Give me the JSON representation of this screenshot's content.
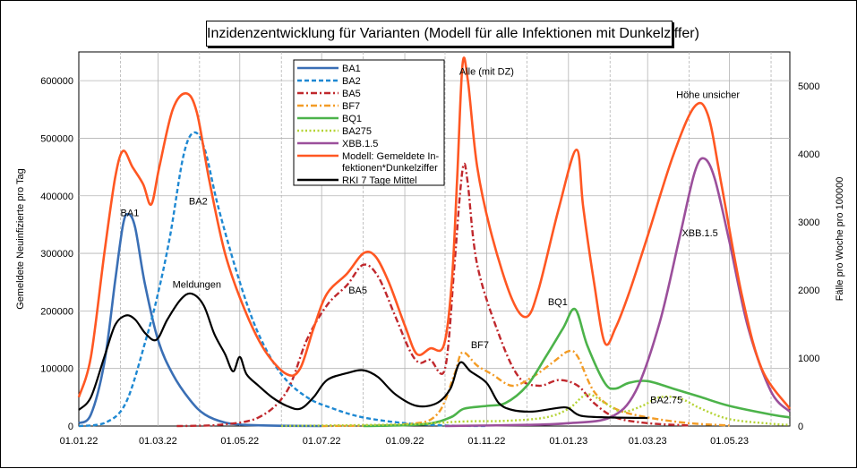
{
  "chart_data": {
    "type": "line",
    "title": "Inzidenzentwicklung für Varianten (Modell für alle Infektionen mit Dunkelziffer)",
    "ylabel": "Gemeldete Neuinfizierte pro Tag",
    "y2label": "Fälle pro Woche pro 100000",
    "x_tick_labels": [
      "01.01.22",
      "01.03.22",
      "01.05.22",
      "01.07.22",
      "01.09.22",
      "01.11.22",
      "01.01.23",
      "01.03.23",
      "01.05.23"
    ],
    "xlim": [
      "2022-01-01",
      "2023-06-15"
    ],
    "ylim": [
      0,
      650000
    ],
    "y_ticks": [
      0,
      100000,
      200000,
      300000,
      400000,
      500000,
      600000
    ],
    "y2lim": [
      0,
      5500
    ],
    "y2_ticks": [
      0,
      1000,
      2000,
      3000,
      4000,
      5000
    ],
    "grid": true,
    "legend_position": "top-center",
    "series": [
      {
        "name": "BA1",
        "color": "#3a6fb5",
        "dash": "solid",
        "points": [
          [
            "2022-01-01",
            5000
          ],
          [
            "2022-01-10",
            20000
          ],
          [
            "2022-01-20",
            110000
          ],
          [
            "2022-01-28",
            250000
          ],
          [
            "2022-02-03",
            350000
          ],
          [
            "2022-02-07",
            368000
          ],
          [
            "2022-02-12",
            345000
          ],
          [
            "2022-02-19",
            250000
          ],
          [
            "2022-03-01",
            150000
          ],
          [
            "2022-03-12",
            90000
          ],
          [
            "2022-03-25",
            45000
          ],
          [
            "2022-04-05",
            20000
          ],
          [
            "2022-04-20",
            6000
          ],
          [
            "2022-05-05",
            2000
          ],
          [
            "2022-06-01",
            500
          ],
          [
            "2022-07-01",
            0
          ]
        ]
      },
      {
        "name": "BA2",
        "color": "#1e88d2",
        "dash": "dashed",
        "points": [
          [
            "2022-01-01",
            0
          ],
          [
            "2022-01-20",
            5000
          ],
          [
            "2022-02-05",
            40000
          ],
          [
            "2022-02-20",
            150000
          ],
          [
            "2022-03-01",
            230000
          ],
          [
            "2022-03-10",
            330000
          ],
          [
            "2022-03-20",
            470000
          ],
          [
            "2022-03-28",
            510000
          ],
          [
            "2022-04-05",
            480000
          ],
          [
            "2022-04-15",
            380000
          ],
          [
            "2022-05-01",
            250000
          ],
          [
            "2022-05-15",
            160000
          ],
          [
            "2022-06-01",
            90000
          ],
          [
            "2022-06-20",
            50000
          ],
          [
            "2022-07-10",
            30000
          ],
          [
            "2022-08-01",
            15000
          ],
          [
            "2022-09-01",
            5000
          ],
          [
            "2022-10-01",
            1000
          ],
          [
            "2022-11-01",
            0
          ]
        ]
      },
      {
        "name": "BA5",
        "color": "#c0282d",
        "dash": "dashdot",
        "points": [
          [
            "2022-03-15",
            0
          ],
          [
            "2022-04-15",
            2000
          ],
          [
            "2022-05-15",
            15000
          ],
          [
            "2022-06-05",
            60000
          ],
          [
            "2022-06-20",
            150000
          ],
          [
            "2022-07-05",
            210000
          ],
          [
            "2022-07-20",
            245000
          ],
          [
            "2022-08-01",
            280000
          ],
          [
            "2022-08-12",
            260000
          ],
          [
            "2022-08-25",
            190000
          ],
          [
            "2022-09-05",
            130000
          ],
          [
            "2022-09-12",
            110000
          ],
          [
            "2022-09-20",
            115000
          ],
          [
            "2022-10-01",
            100000
          ],
          [
            "2022-10-08",
            280000
          ],
          [
            "2022-10-12",
            400000
          ],
          [
            "2022-10-15",
            455000
          ],
          [
            "2022-10-18",
            420000
          ],
          [
            "2022-10-25",
            280000
          ],
          [
            "2022-11-10",
            160000
          ],
          [
            "2022-11-25",
            85000
          ],
          [
            "2022-12-10",
            70000
          ],
          [
            "2022-12-25",
            80000
          ],
          [
            "2023-01-08",
            70000
          ],
          [
            "2023-01-20",
            40000
          ],
          [
            "2023-02-05",
            15000
          ],
          [
            "2023-03-01",
            5000
          ],
          [
            "2023-04-01",
            1000
          ]
        ]
      },
      {
        "name": "BF7",
        "color": "#f39c26",
        "dash": "dashdot",
        "points": [
          [
            "2022-07-01",
            0
          ],
          [
            "2022-09-01",
            3000
          ],
          [
            "2022-09-25",
            20000
          ],
          [
            "2022-10-08",
            90000
          ],
          [
            "2022-10-14",
            128000
          ],
          [
            "2022-10-25",
            105000
          ],
          [
            "2022-11-05",
            90000
          ],
          [
            "2022-11-20",
            70000
          ],
          [
            "2022-12-05",
            85000
          ],
          [
            "2022-12-20",
            110000
          ],
          [
            "2023-01-01",
            130000
          ],
          [
            "2023-01-08",
            120000
          ],
          [
            "2023-01-20",
            60000
          ],
          [
            "2023-02-05",
            30000
          ],
          [
            "2023-03-01",
            15000
          ],
          [
            "2023-04-01",
            5000
          ],
          [
            "2023-05-01",
            1000
          ]
        ]
      },
      {
        "name": "BQ1",
        "color": "#4cb34a",
        "dash": "solid",
        "points": [
          [
            "2022-08-01",
            0
          ],
          [
            "2022-09-15",
            3000
          ],
          [
            "2022-10-05",
            15000
          ],
          [
            "2022-10-15",
            30000
          ],
          [
            "2022-11-01",
            35000
          ],
          [
            "2022-11-15",
            40000
          ],
          [
            "2022-12-01",
            70000
          ],
          [
            "2022-12-15",
            120000
          ],
          [
            "2022-12-28",
            170000
          ],
          [
            "2023-01-06",
            203000
          ],
          [
            "2023-01-15",
            140000
          ],
          [
            "2023-01-28",
            75000
          ],
          [
            "2023-02-05",
            65000
          ],
          [
            "2023-02-15",
            75000
          ],
          [
            "2023-03-01",
            78000
          ],
          [
            "2023-03-20",
            65000
          ],
          [
            "2023-04-10",
            50000
          ],
          [
            "2023-05-01",
            35000
          ],
          [
            "2023-06-01",
            20000
          ],
          [
            "2023-06-15",
            15000
          ]
        ]
      },
      {
        "name": "BA275",
        "color": "#b5d334",
        "dash": "dotted",
        "points": [
          [
            "2022-06-01",
            0
          ],
          [
            "2022-09-01",
            3000
          ],
          [
            "2022-10-15",
            8000
          ],
          [
            "2022-11-15",
            9000
          ],
          [
            "2022-12-15",
            15000
          ],
          [
            "2023-01-01",
            30000
          ],
          [
            "2023-01-15",
            55000
          ],
          [
            "2023-01-28",
            40000
          ],
          [
            "2023-02-10",
            25000
          ],
          [
            "2023-02-25",
            35000
          ],
          [
            "2023-03-10",
            50000
          ],
          [
            "2023-03-25",
            48000
          ],
          [
            "2023-04-10",
            30000
          ],
          [
            "2023-05-01",
            12000
          ],
          [
            "2023-06-01",
            4000
          ],
          [
            "2023-06-15",
            2000
          ]
        ]
      },
      {
        "name": "XBB.1.5",
        "color": "#9b4f9b",
        "dash": "solid",
        "points": [
          [
            "2022-10-01",
            0
          ],
          [
            "2022-12-01",
            2000
          ],
          [
            "2023-01-01",
            5000
          ],
          [
            "2023-02-01",
            15000
          ],
          [
            "2023-02-20",
            60000
          ],
          [
            "2023-03-10",
            180000
          ],
          [
            "2023-03-25",
            330000
          ],
          [
            "2023-04-05",
            440000
          ],
          [
            "2023-04-12",
            465000
          ],
          [
            "2023-04-20",
            430000
          ],
          [
            "2023-05-01",
            320000
          ],
          [
            "2023-05-15",
            170000
          ],
          [
            "2023-06-01",
            60000
          ],
          [
            "2023-06-15",
            25000
          ]
        ]
      },
      {
        "name": "Modell: Gemeldete Infektionen*Dunkelziffer",
        "color": "#ff5722",
        "dash": "solid",
        "points": [
          [
            "2022-01-01",
            50000
          ],
          [
            "2022-01-10",
            120000
          ],
          [
            "2022-01-20",
            300000
          ],
          [
            "2022-01-28",
            430000
          ],
          [
            "2022-02-03",
            478000
          ],
          [
            "2022-02-10",
            450000
          ],
          [
            "2022-02-18",
            420000
          ],
          [
            "2022-02-24",
            385000
          ],
          [
            "2022-03-02",
            450000
          ],
          [
            "2022-03-12",
            550000
          ],
          [
            "2022-03-22",
            578000
          ],
          [
            "2022-03-30",
            545000
          ],
          [
            "2022-04-08",
            430000
          ],
          [
            "2022-04-20",
            300000
          ],
          [
            "2022-05-05",
            200000
          ],
          [
            "2022-05-20",
            130000
          ],
          [
            "2022-06-05",
            90000
          ],
          [
            "2022-06-15",
            100000
          ],
          [
            "2022-06-25",
            170000
          ],
          [
            "2022-07-05",
            230000
          ],
          [
            "2022-07-20",
            265000
          ],
          [
            "2022-08-01",
            300000
          ],
          [
            "2022-08-10",
            295000
          ],
          [
            "2022-08-20",
            250000
          ],
          [
            "2022-09-01",
            175000
          ],
          [
            "2022-09-10",
            125000
          ],
          [
            "2022-09-20",
            135000
          ],
          [
            "2022-09-30",
            140000
          ],
          [
            "2022-10-06",
            250000
          ],
          [
            "2022-10-10",
            430000
          ],
          [
            "2022-10-14",
            628000
          ],
          [
            "2022-10-18",
            600000
          ],
          [
            "2022-10-25",
            450000
          ],
          [
            "2022-11-05",
            330000
          ],
          [
            "2022-11-20",
            220000
          ],
          [
            "2022-12-01",
            190000
          ],
          [
            "2022-12-10",
            240000
          ],
          [
            "2022-12-25",
            380000
          ],
          [
            "2023-01-07",
            480000
          ],
          [
            "2023-01-12",
            380000
          ],
          [
            "2023-01-20",
            250000
          ],
          [
            "2023-01-28",
            145000
          ],
          [
            "2023-02-05",
            170000
          ],
          [
            "2023-02-15",
            230000
          ],
          [
            "2023-03-01",
            330000
          ],
          [
            "2023-03-20",
            470000
          ],
          [
            "2023-04-05",
            555000
          ],
          [
            "2023-04-15",
            540000
          ],
          [
            "2023-04-25",
            420000
          ],
          [
            "2023-05-10",
            230000
          ],
          [
            "2023-05-25",
            100000
          ],
          [
            "2023-06-15",
            30000
          ]
        ]
      },
      {
        "name": "RKI 7 Tage Mittel",
        "color": "#000000",
        "dash": "solid",
        "points": [
          [
            "2022-01-01",
            28000
          ],
          [
            "2022-01-10",
            50000
          ],
          [
            "2022-01-20",
            120000
          ],
          [
            "2022-01-28",
            175000
          ],
          [
            "2022-02-05",
            192000
          ],
          [
            "2022-02-12",
            185000
          ],
          [
            "2022-02-20",
            160000
          ],
          [
            "2022-02-28",
            150000
          ],
          [
            "2022-03-08",
            185000
          ],
          [
            "2022-03-18",
            220000
          ],
          [
            "2022-03-26",
            230000
          ],
          [
            "2022-04-04",
            210000
          ],
          [
            "2022-04-12",
            160000
          ],
          [
            "2022-04-20",
            125000
          ],
          [
            "2022-04-26",
            95000
          ],
          [
            "2022-05-01",
            120000
          ],
          [
            "2022-05-06",
            90000
          ],
          [
            "2022-05-15",
            70000
          ],
          [
            "2022-05-25",
            50000
          ],
          [
            "2022-06-05",
            35000
          ],
          [
            "2022-06-15",
            30000
          ],
          [
            "2022-06-25",
            50000
          ],
          [
            "2022-07-05",
            80000
          ],
          [
            "2022-07-20",
            92000
          ],
          [
            "2022-08-01",
            97000
          ],
          [
            "2022-08-12",
            85000
          ],
          [
            "2022-08-25",
            55000
          ],
          [
            "2022-09-10",
            35000
          ],
          [
            "2022-09-25",
            40000
          ],
          [
            "2022-10-05",
            65000
          ],
          [
            "2022-10-12",
            110000
          ],
          [
            "2022-10-20",
            95000
          ],
          [
            "2022-11-01",
            75000
          ],
          [
            "2022-11-10",
            40000
          ],
          [
            "2022-11-20",
            28000
          ],
          [
            "2022-12-05",
            25000
          ],
          [
            "2022-12-20",
            30000
          ],
          [
            "2022-12-31",
            32000
          ],
          [
            "2023-01-10",
            18000
          ],
          [
            "2023-02-01",
            15000
          ],
          [
            "2023-03-01",
            14000
          ]
        ]
      }
    ],
    "annotations": [
      {
        "text": "BA1",
        "x": "2022-02-08",
        "y": 365000
      },
      {
        "text": "BA2",
        "x": "2022-03-31",
        "y": 385000
      },
      {
        "text": "Meldungen",
        "x": "2022-03-30",
        "y": 240000
      },
      {
        "text": "BA5",
        "x": "2022-07-28",
        "y": 230000
      },
      {
        "text": "Alle (mit DZ)",
        "x": "2022-11-01",
        "y": 610000
      },
      {
        "text": "BF7",
        "x": "2022-10-27",
        "y": 135000
      },
      {
        "text": "BQ1",
        "x": "2022-12-24",
        "y": 210000
      },
      {
        "text": "BA2.75",
        "x": "2023-03-15",
        "y": 40000
      },
      {
        "text": "Höhe unsicher",
        "x": "2023-04-15",
        "y": 570000
      },
      {
        "text": "XBB.1.5",
        "x": "2023-04-09",
        "y": 330000
      }
    ]
  }
}
